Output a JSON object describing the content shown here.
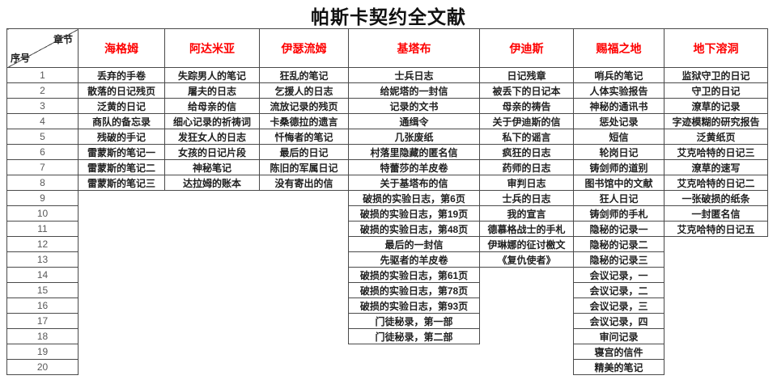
{
  "title": "帕斯卡契约全文献",
  "corner": {
    "top": "章节",
    "bottom": "序号"
  },
  "colors": {
    "header_text": "#fe0000",
    "grid_line": "#4a4a4a",
    "body_text": "#1f1f1f",
    "row_number_text": "#595959"
  },
  "row_numbers": [
    "1",
    "2",
    "3",
    "4",
    "5",
    "6",
    "7",
    "8",
    "9",
    "10",
    "11",
    "12",
    "13",
    "14",
    "15",
    "16",
    "17",
    "18",
    "19",
    "20"
  ],
  "columns": [
    {
      "label": "海格姆",
      "entries": [
        "丢弃的手卷",
        "散落的日记残页",
        "泛黄的日记",
        "商队的备忘录",
        "残破的手记",
        "雷蒙斯的笔记一",
        "雷蒙斯的笔记二",
        "雷蒙斯的笔记三"
      ]
    },
    {
      "label": "阿达米亚",
      "entries": [
        "失踪男人的笔记",
        "屠夫的日志",
        "给母亲的信",
        "细心记录的祈祷词",
        "发狂女人的日志",
        "女孩的日记片段",
        "神秘笔记",
        "达拉姆的账本"
      ]
    },
    {
      "label": "伊瑟流姆",
      "entries": [
        "狂乱的笔记",
        "乞援人的日志",
        "流放记录的残页",
        "卡桑德拉的遗言",
        "忏悔者的笔记",
        "最后的日记",
        "陈旧的军属日记",
        "没有寄出的信"
      ]
    },
    {
      "label": "基塔布",
      "entries": [
        "士兵日志",
        "给妮塔的一封信",
        "记录的文书",
        "通缉令",
        "几张废纸",
        "村落里隐藏的匿名信",
        "特蕾莎的羊皮卷",
        "关于基塔布的信",
        "破损的实验日志，第6页",
        "破损的实验日志，第19页",
        "破损的实验日志，第48页",
        "最后的一封信",
        "先驱者的羊皮卷",
        "破损的实验日志，第61页",
        "破损的实验日志，第78页",
        "破损的实验日志，第93页",
        "门徒秘录，第一部",
        "门徒秘录，第二部"
      ]
    },
    {
      "label": "伊迪斯",
      "entries": [
        "日记残章",
        "被丢下的日记本",
        "母亲的祷告",
        "关于伊迪斯的信",
        "私下的谣言",
        "疯狂的日志",
        "药师的日志",
        "审判日志",
        "士兵的日志",
        "我的宣言",
        "德慕格战士的手札",
        "伊琳娜的征讨檄文",
        "《复仇使者》"
      ]
    },
    {
      "label": "赐福之地",
      "entries": [
        "哨兵的笔记",
        "人体实验报告",
        "神秘的通讯书",
        "惩处记录",
        "短信",
        "轮岗日记",
        "铸剑师的道别",
        "图书馆中的文献",
        "狂人日记",
        "铸剑师的手札",
        "隐秘的记录一",
        "隐秘的记录二",
        "隐秘的记录三",
        "会议记录，一",
        "会议记录，二",
        "会议记录，三",
        "会议记录，四",
        "审问记录",
        "寝宫的信件",
        "精美的笔记"
      ]
    },
    {
      "label": "地下溶洞",
      "entries": [
        "监狱守卫的日记",
        "守卫的日记",
        "潦草的记录",
        "字迹模糊的研究报告",
        "泛黄纸页",
        "艾克哈特的日记三",
        "潦草的速写",
        "艾克哈特的日记二",
        "一张破损的纸条",
        "一封匿名信",
        "艾克哈特的日记五"
      ]
    }
  ]
}
